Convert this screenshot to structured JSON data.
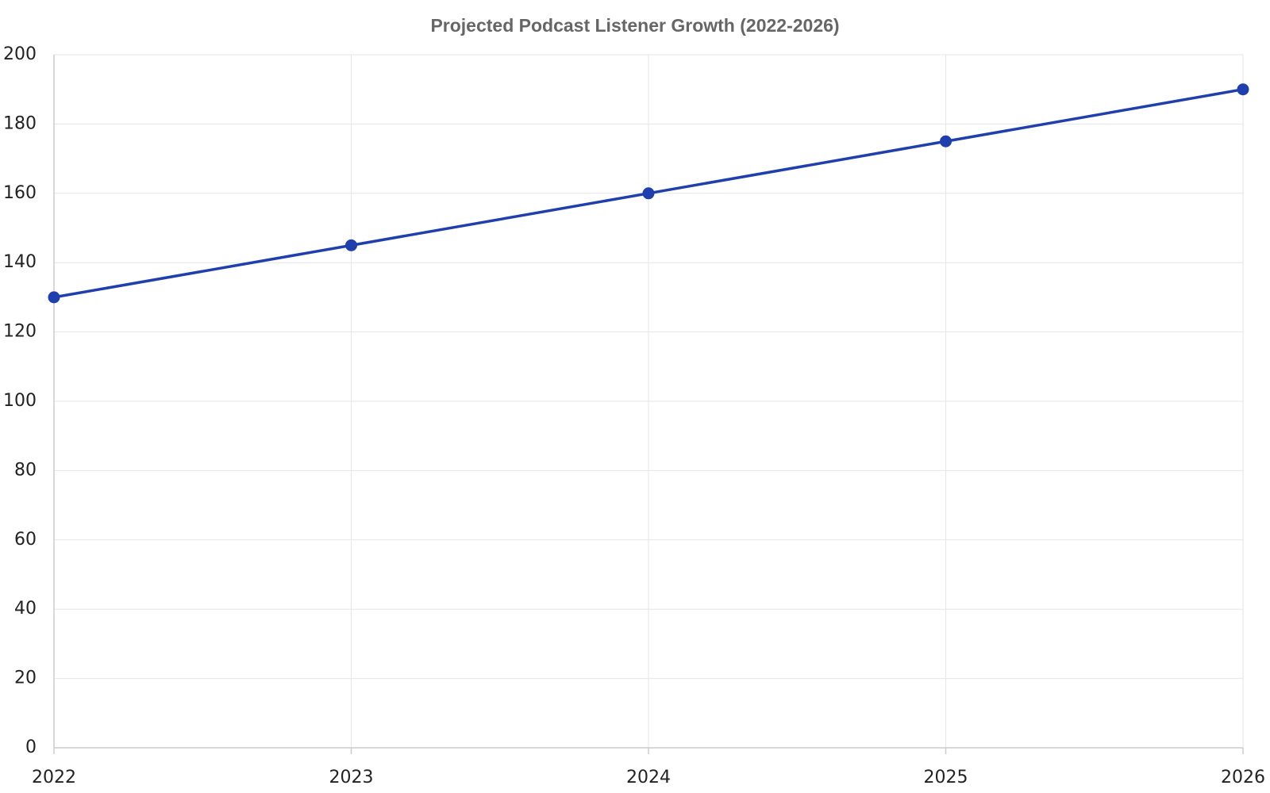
{
  "chart_data": {
    "type": "line",
    "title": "Projected Podcast Listener Growth (2022-2026)",
    "x": [
      2022,
      2023,
      2024,
      2025,
      2026
    ],
    "values": [
      130,
      145,
      160,
      175,
      190
    ],
    "color": "#1f3fae",
    "xlim": [
      2022,
      2026
    ],
    "xticks": [
      2022,
      2023,
      2024,
      2025,
      2026
    ],
    "ylim": [
      0,
      200
    ],
    "yticks": [
      0,
      20,
      40,
      60,
      80,
      100,
      120,
      140,
      160,
      180,
      200
    ],
    "grid": true
  }
}
